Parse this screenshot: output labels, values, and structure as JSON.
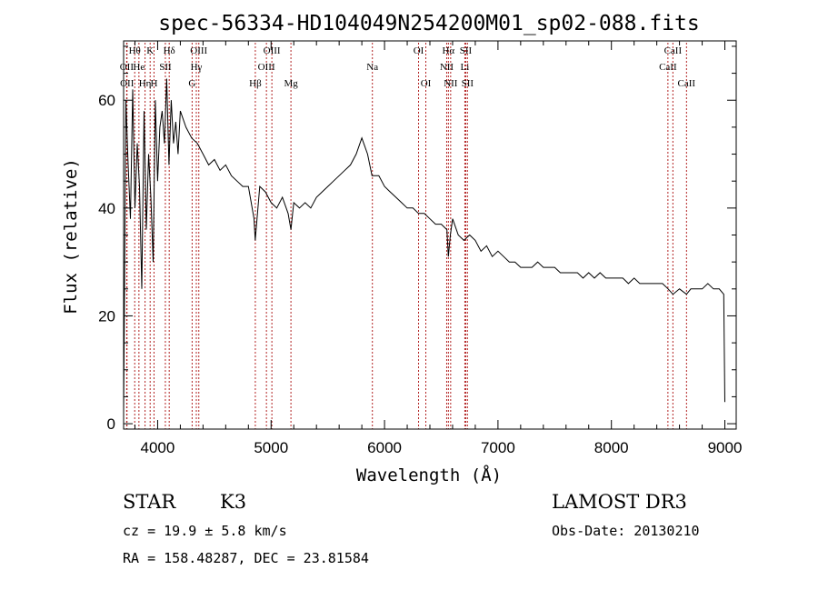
{
  "chart_data": {
    "type": "line",
    "title": "spec-56334-HD104049N254200M01_sp02-088.fits",
    "xlabel": "Wavelength (Å)",
    "ylabel": "Flux (relative)",
    "xlim": [
      3700,
      9100
    ],
    "ylim": [
      -1,
      71
    ],
    "xticks": [
      4000,
      5000,
      6000,
      7000,
      8000,
      9000
    ],
    "yticks": [
      0,
      20,
      40,
      60
    ],
    "series": [
      {
        "name": "spectrum",
        "x": [
          3700,
          3720,
          3740,
          3760,
          3780,
          3800,
          3820,
          3840,
          3860,
          3880,
          3900,
          3920,
          3940,
          3960,
          3980,
          4000,
          4020,
          4040,
          4060,
          4080,
          4100,
          4120,
          4140,
          4160,
          4180,
          4200,
          4250,
          4300,
          4350,
          4400,
          4450,
          4500,
          4550,
          4600,
          4650,
          4700,
          4750,
          4800,
          4850,
          4860,
          4900,
          4950,
          5000,
          5050,
          5100,
          5150,
          5175,
          5200,
          5250,
          5300,
          5350,
          5400,
          5450,
          5500,
          5550,
          5600,
          5650,
          5700,
          5750,
          5800,
          5850,
          5890,
          5950,
          6000,
          6050,
          6100,
          6150,
          6200,
          6250,
          6300,
          6350,
          6400,
          6450,
          6500,
          6550,
          6563,
          6580,
          6600,
          6650,
          6700,
          6750,
          6800,
          6850,
          6900,
          6950,
          7000,
          7050,
          7100,
          7150,
          7200,
          7250,
          7300,
          7350,
          7400,
          7450,
          7500,
          7550,
          7600,
          7650,
          7700,
          7750,
          7800,
          7850,
          7900,
          7950,
          8000,
          8050,
          8100,
          8150,
          8200,
          8250,
          8300,
          8350,
          8400,
          8450,
          8500,
          8542,
          8600,
          8662,
          8700,
          8750,
          8800,
          8850,
          8900,
          8950,
          8990,
          9000
        ],
        "y": [
          2,
          60,
          48,
          38,
          62,
          40,
          52,
          44,
          25,
          58,
          36,
          50,
          42,
          30,
          60,
          45,
          55,
          58,
          52,
          64,
          48,
          60,
          52,
          56,
          50,
          58,
          55,
          53,
          52,
          50,
          48,
          49,
          47,
          48,
          46,
          45,
          44,
          44,
          38,
          34,
          44,
          43,
          41,
          40,
          42,
          39,
          36,
          41,
          40,
          41,
          40,
          42,
          43,
          44,
          45,
          46,
          47,
          48,
          50,
          53,
          50,
          46,
          46,
          44,
          43,
          42,
          41,
          40,
          40,
          39,
          39,
          38,
          37,
          37,
          36,
          31,
          35,
          38,
          35,
          34,
          35,
          34,
          32,
          33,
          31,
          32,
          31,
          30,
          30,
          29,
          29,
          29,
          30,
          29,
          29,
          29,
          28,
          28,
          28,
          28,
          27,
          28,
          27,
          28,
          27,
          27,
          27,
          27,
          26,
          27,
          26,
          26,
          26,
          26,
          26,
          25,
          24,
          25,
          24,
          25,
          25,
          25,
          26,
          25,
          25,
          24,
          4
        ]
      }
    ],
    "spectral_lines": [
      {
        "name": "Hθ",
        "wavelength": 3798,
        "tier": 0
      },
      {
        "name": "OII",
        "wavelength": 3727,
        "tier": 1
      },
      {
        "name": "OII",
        "wavelength": 3730,
        "tier": 2
      },
      {
        "name": "He",
        "wavelength": 3835,
        "tier": 1
      },
      {
        "name": "Hη",
        "wavelength": 3889,
        "tier": 2
      },
      {
        "name": "K",
        "wavelength": 3934,
        "tier": 0
      },
      {
        "name": "H",
        "wavelength": 3968,
        "tier": 2
      },
      {
        "name": "SII",
        "wavelength": 4068,
        "tier": 1
      },
      {
        "name": "Hδ",
        "wavelength": 4102,
        "tier": 0
      },
      {
        "name": "OIII",
        "wavelength": 4363,
        "tier": 0
      },
      {
        "name": "Hγ",
        "wavelength": 4341,
        "tier": 1
      },
      {
        "name": "G",
        "wavelength": 4304,
        "tier": 2
      },
      {
        "name": "Hβ",
        "wavelength": 4861,
        "tier": 2
      },
      {
        "name": "OIII",
        "wavelength": 4959,
        "tier": 1
      },
      {
        "name": "OIII",
        "wavelength": 5007,
        "tier": 0
      },
      {
        "name": "Mg",
        "wavelength": 5175,
        "tier": 2
      },
      {
        "name": "Na",
        "wavelength": 5893,
        "tier": 1
      },
      {
        "name": "OI",
        "wavelength": 6300,
        "tier": 0
      },
      {
        "name": "OI",
        "wavelength": 6364,
        "tier": 2
      },
      {
        "name": "Hα",
        "wavelength": 6563,
        "tier": 0
      },
      {
        "name": "NII",
        "wavelength": 6548,
        "tier": 1
      },
      {
        "name": "NII",
        "wavelength": 6583,
        "tier": 2
      },
      {
        "name": "SII",
        "wavelength": 6716,
        "tier": 0
      },
      {
        "name": "Li",
        "wavelength": 6708,
        "tier": 1
      },
      {
        "name": "SII",
        "wavelength": 6731,
        "tier": 2
      },
      {
        "name": "CaII",
        "wavelength": 8542,
        "tier": 0
      },
      {
        "name": "CaII",
        "wavelength": 8498,
        "tier": 1
      },
      {
        "name": "CaII",
        "wavelength": 8662,
        "tier": 2
      }
    ]
  },
  "info": {
    "class": "STAR",
    "subclass": "K3",
    "survey": "LAMOST DR3",
    "cz": "cz = 19.9 ± 5.8 km/s",
    "obs_date": "Obs-Date: 20130210",
    "coords": "RA = 158.48287, DEC =  23.81584"
  },
  "colors": {
    "line_marker": "#b22222",
    "spectrum": "#000000",
    "axes": "#000000"
  }
}
